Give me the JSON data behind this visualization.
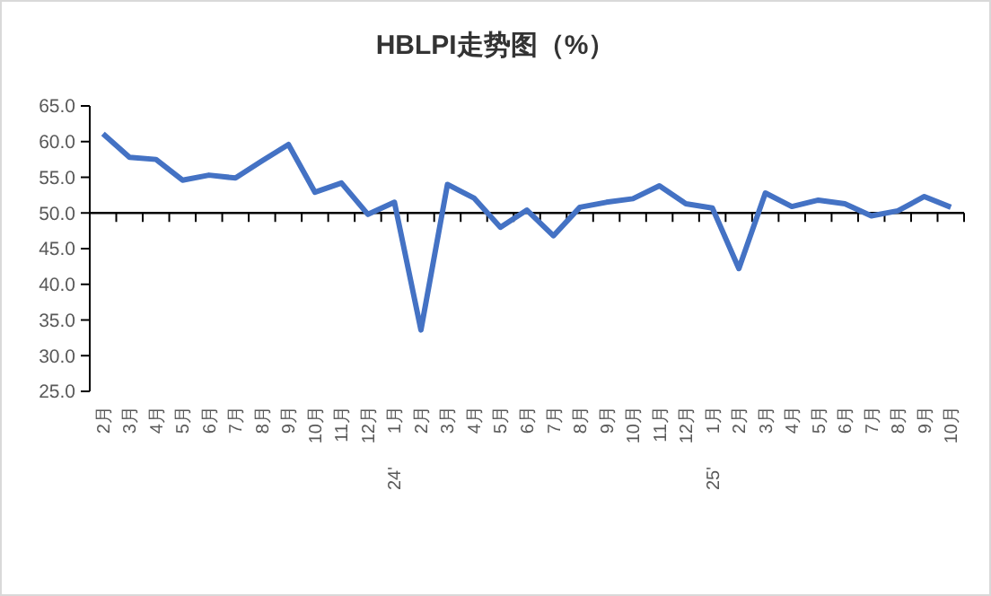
{
  "chart_data": {
    "type": "line",
    "title": "HBLPI走势图（%）",
    "categories": [
      "2月",
      "3月",
      "4月",
      "5月",
      "6月",
      "7月",
      "8月",
      "9月",
      "10月",
      "11月",
      "12月",
      "1月\n24'",
      "2月",
      "3月",
      "4月",
      "5月",
      "6月",
      "7月",
      "8月",
      "9月",
      "10月",
      "11月",
      "12月",
      "1月\n25'",
      "2月",
      "3月",
      "4月",
      "5月",
      "6月",
      "7月",
      "8月",
      "9月",
      "10月"
    ],
    "series": [
      {
        "color": "#4472c4",
        "values": [
          61.1,
          57.8,
          57.5,
          54.6,
          55.3,
          54.9,
          57.3,
          59.6,
          52.9,
          54.2,
          49.8,
          51.5,
          33.6,
          54.0,
          52.1,
          48.0,
          50.4,
          46.8,
          50.8,
          51.5,
          52.0,
          53.8,
          51.3,
          50.7,
          42.2,
          52.8,
          50.9,
          51.8,
          51.3,
          49.6,
          50.3,
          52.3,
          50.8
        ]
      }
    ],
    "ylim": [
      25,
      65
    ],
    "yticks": [
      {
        "value": 25,
        "label": "25.0"
      },
      {
        "value": 30,
        "label": "30.0"
      },
      {
        "value": 35,
        "label": "35.0"
      },
      {
        "value": 40,
        "label": "40.0"
      },
      {
        "value": 45,
        "label": "45.0"
      },
      {
        "value": 50,
        "label": "50.0"
      },
      {
        "value": 55,
        "label": "55.0"
      },
      {
        "value": 60,
        "label": "60.0"
      },
      {
        "value": 65,
        "label": "65.0"
      }
    ],
    "ref_lines": [
      {
        "axis": "y",
        "value": 50,
        "color": "#000000"
      }
    ],
    "grid": false,
    "marker": "none",
    "line_style": "solid"
  }
}
